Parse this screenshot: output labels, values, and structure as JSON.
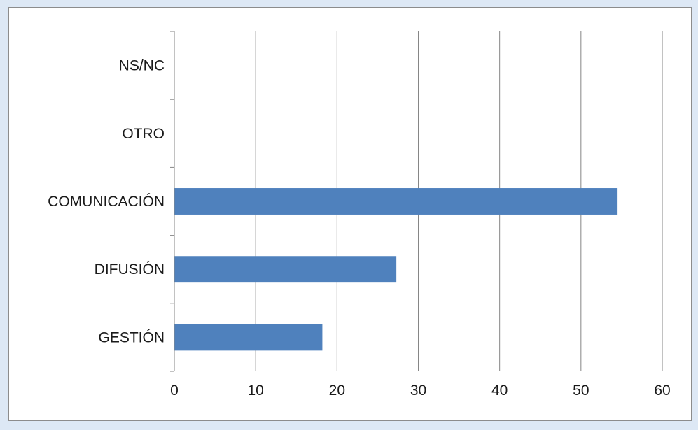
{
  "chart_data": {
    "type": "bar",
    "orientation": "horizontal",
    "categories": [
      "GESTIÓN",
      "DIFUSIÓN",
      "COMUNICACIÓN",
      "OTRO",
      "NS/NC"
    ],
    "values": [
      18.2,
      27.3,
      54.5,
      0,
      0
    ],
    "xlim": [
      0,
      60
    ],
    "xticks": [
      0,
      10,
      20,
      30,
      40,
      50,
      60
    ],
    "grid": "vertical",
    "legend": "none",
    "title": "",
    "xlabel": "",
    "ylabel": "",
    "bar_color": "#4f81bd"
  }
}
